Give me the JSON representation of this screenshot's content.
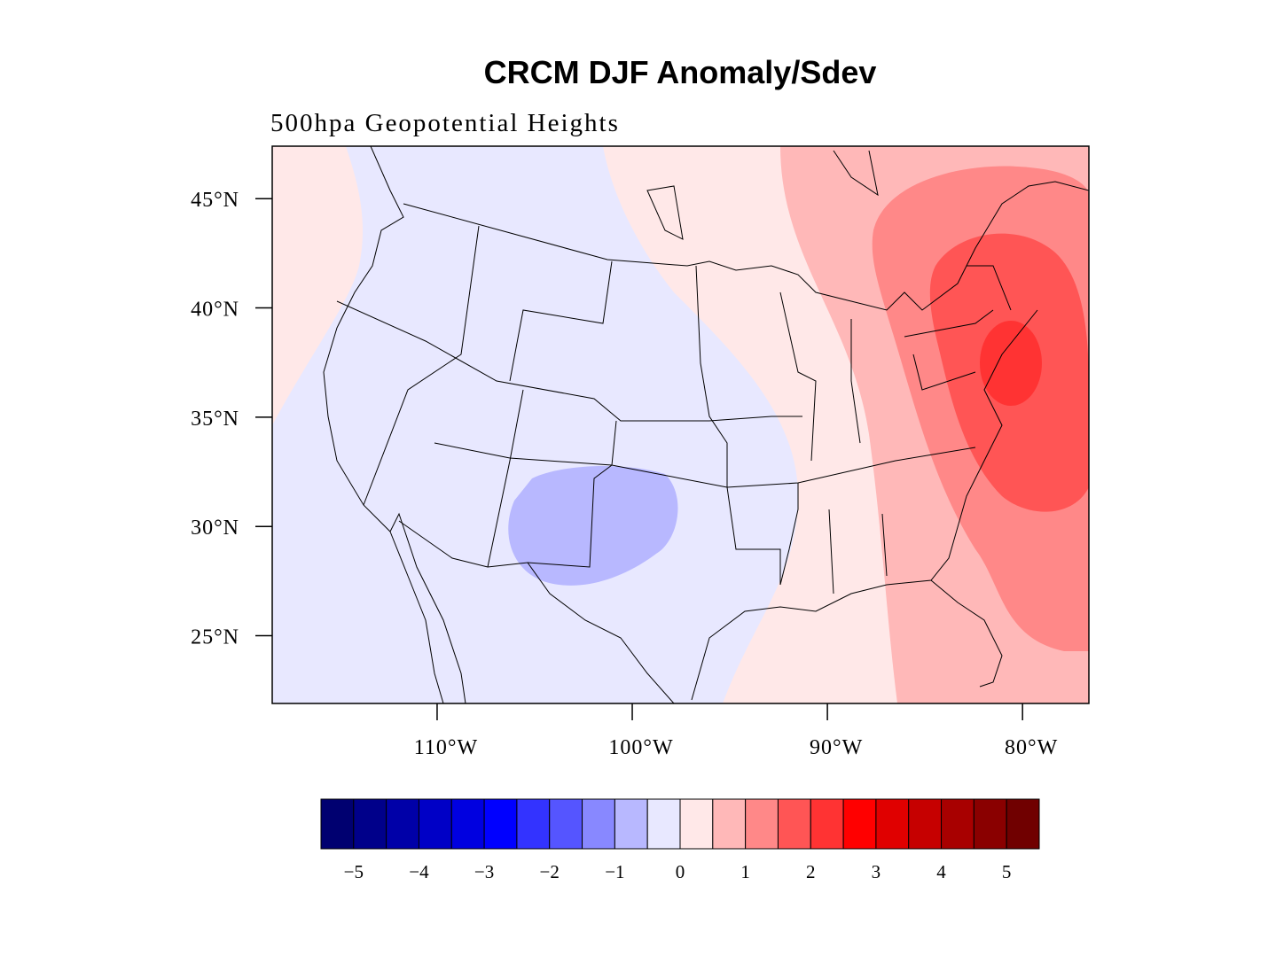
{
  "chart_data": {
    "type": "map",
    "title": "CRCM DJF Anomaly/Sdev",
    "subtitle": "500hpa Geopotential Heights",
    "xlim": [
      -118.45,
      -76.6
    ],
    "ylim": [
      21.9,
      47.4
    ],
    "xticks": [
      {
        "value": -110,
        "label": "110°W"
      },
      {
        "value": -100,
        "label": "100°W"
      },
      {
        "value": -90,
        "label": "90°W"
      },
      {
        "value": -80,
        "label": "80°W"
      }
    ],
    "yticks": [
      {
        "value": 45,
        "label": "45°N"
      },
      {
        "value": 40,
        "label": "40°N"
      },
      {
        "value": 35,
        "label": "35°N"
      },
      {
        "value": 30,
        "label": "30°N"
      },
      {
        "value": 25,
        "label": "25°N"
      }
    ],
    "colorbar": {
      "colors": [
        "#000070",
        "#00008a",
        "#0000a8",
        "#0000c6",
        "#0000e0",
        "#0000ff",
        "#3333ff",
        "#5555ff",
        "#8888ff",
        "#b8b8ff",
        "#e8e8ff",
        "#ffe8e8",
        "#ffb8b8",
        "#ff8888",
        "#ff5555",
        "#ff3333",
        "#ff0000",
        "#e00000",
        "#c60000",
        "#a80000",
        "#8a0000",
        "#700000"
      ],
      "ticks": [
        {
          "value": -5,
          "label": "−5"
        },
        {
          "value": -4,
          "label": "−4"
        },
        {
          "value": -3,
          "label": "−3"
        },
        {
          "value": -2,
          "label": "−2"
        },
        {
          "value": -1,
          "label": "−1"
        },
        0,
        1,
        2,
        3,
        4,
        5
      ]
    }
  }
}
